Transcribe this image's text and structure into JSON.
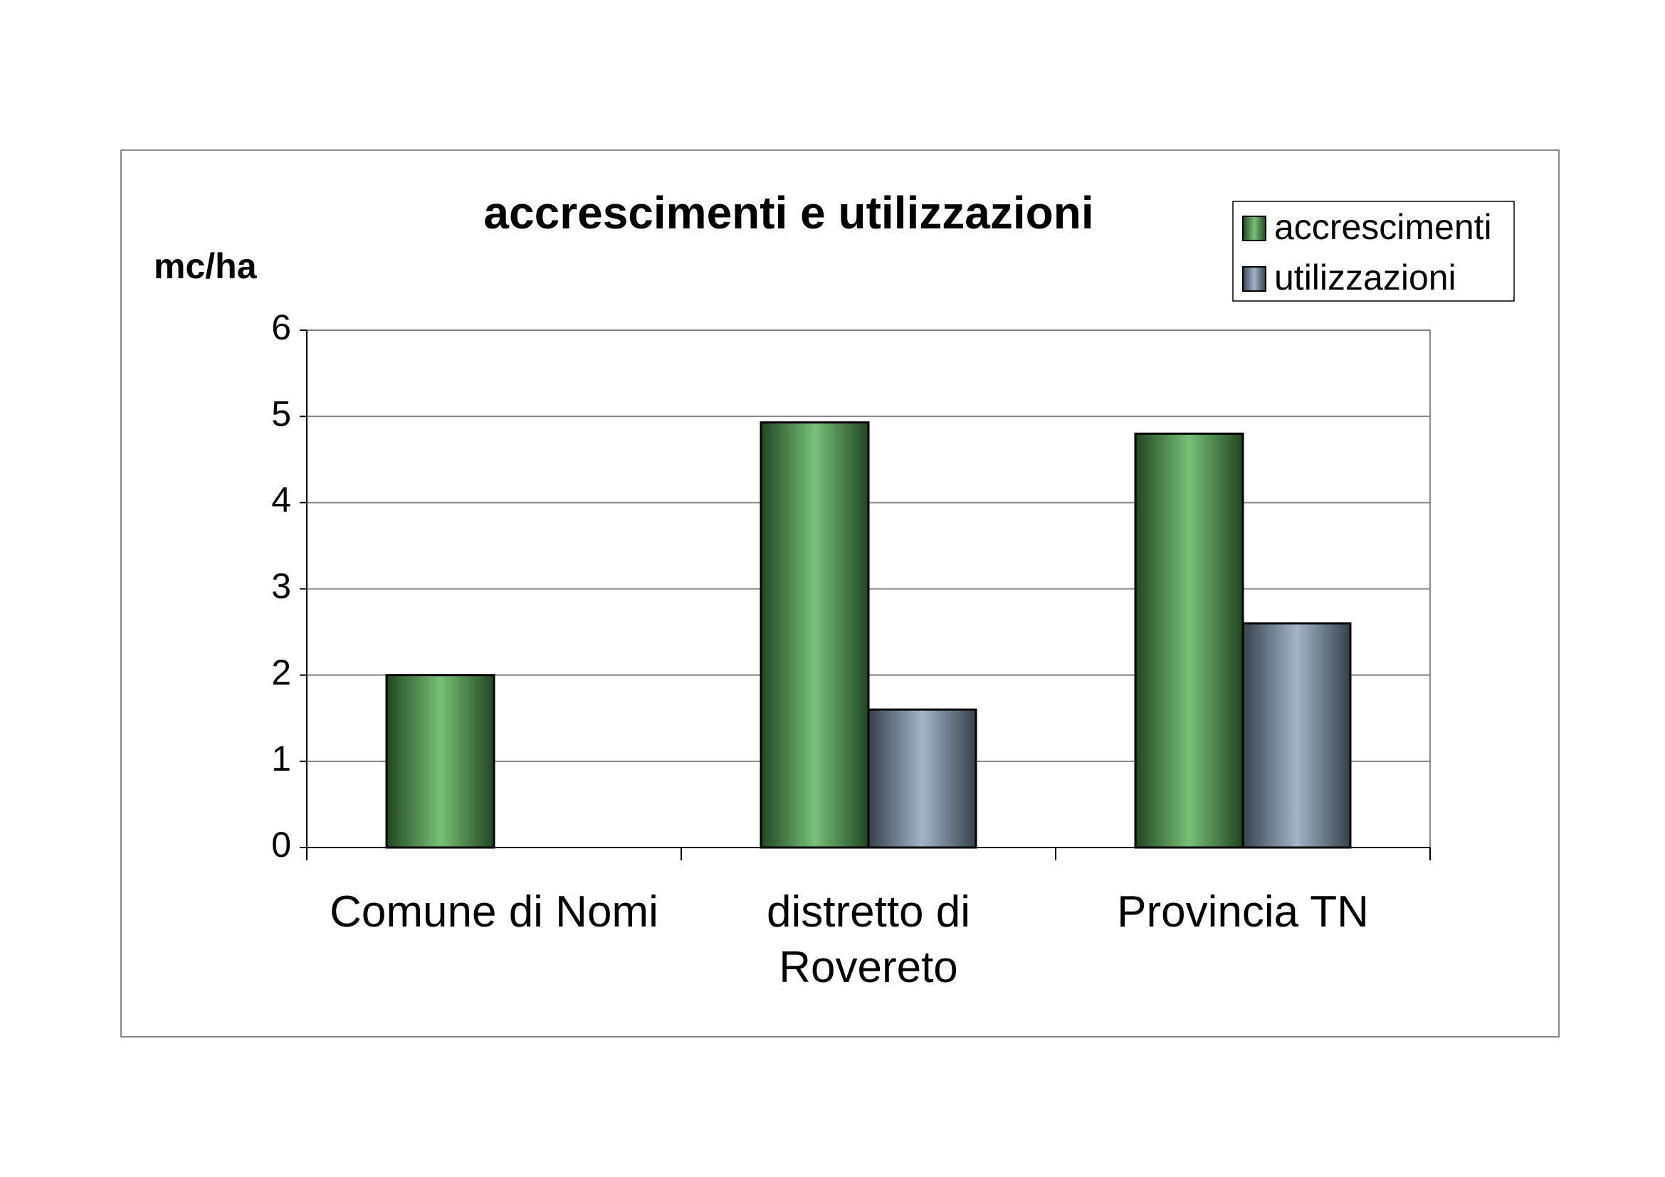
{
  "chart_data": {
    "type": "bar",
    "title": "accrescimenti e utilizzazioni",
    "y_label": "mc/ha",
    "categories": [
      "Comune di Nomi",
      "distretto di Rovereto",
      "Provincia TN"
    ],
    "series": [
      {
        "name": "accrescimenti",
        "color": "#55b055",
        "values": [
          2.0,
          4.93,
          4.8
        ]
      },
      {
        "name": "utilizzazioni",
        "color": "#8aa2bc",
        "values": [
          null,
          1.6,
          2.6
        ]
      }
    ],
    "ylim": [
      0,
      6
    ],
    "yticks": [
      0,
      1,
      2,
      3,
      4,
      5,
      6
    ],
    "grid": true,
    "legend": "top-right"
  }
}
